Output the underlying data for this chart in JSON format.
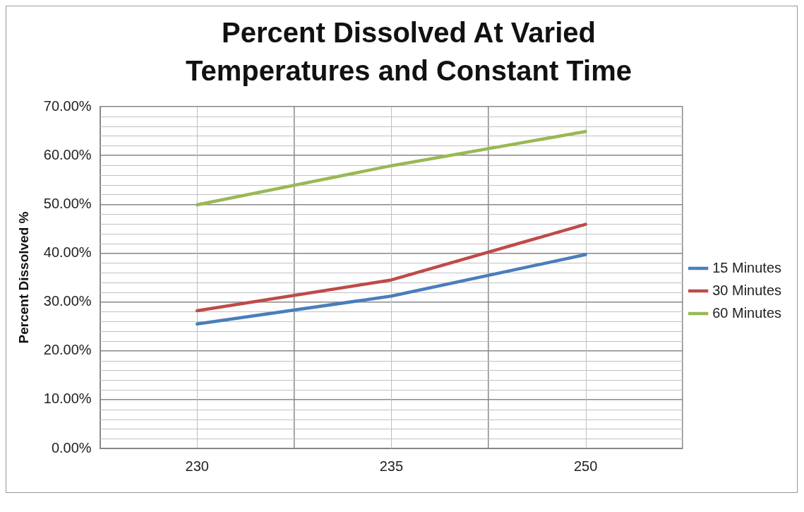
{
  "chart_data": {
    "type": "line",
    "title": "Percent Dissolved At Varied Temperatures and Constant Time",
    "ylabel": "Percent Dissolved %",
    "categories": [
      "230",
      "235",
      "250"
    ],
    "series": [
      {
        "name": "15 Minutes",
        "color": "#4a7ebb",
        "values": [
          25.5,
          31.2,
          39.7
        ]
      },
      {
        "name": "30 Minutes",
        "color": "#be4b48",
        "values": [
          28.2,
          34.5,
          45.9
        ]
      },
      {
        "name": "60 Minutes",
        "color": "#98b954",
        "values": [
          49.9,
          57.9,
          64.9
        ]
      }
    ],
    "ylim": [
      0,
      70
    ],
    "yticks": [
      {
        "value": 0,
        "label": "0.00%"
      },
      {
        "value": 10,
        "label": "10.00%"
      },
      {
        "value": 20,
        "label": "20.00%"
      },
      {
        "value": 30,
        "label": "30.00%"
      },
      {
        "value": 40,
        "label": "40.00%"
      },
      {
        "value": 50,
        "label": "50.00%"
      },
      {
        "value": 60,
        "label": "60.00%"
      },
      {
        "value": 70,
        "label": "70.00%"
      }
    ],
    "grid": true,
    "legend": "right",
    "marker": "none",
    "line_style": "solid"
  }
}
